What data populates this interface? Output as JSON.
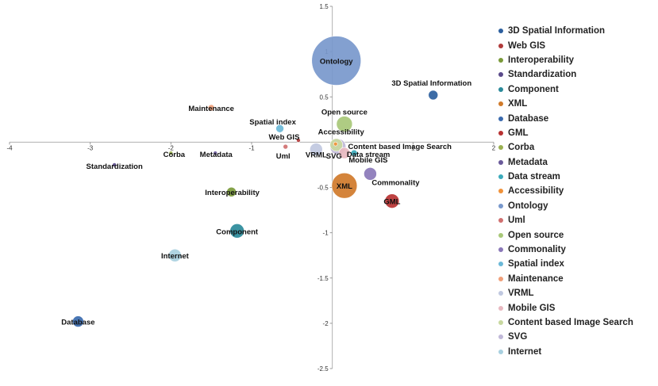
{
  "chart_data": {
    "type": "scatter",
    "title": "",
    "xlabel": "",
    "ylabel": "",
    "xlim": [
      -4,
      2
    ],
    "ylim": [
      -2.5,
      1.5
    ],
    "x_ticks": [
      "-4",
      "-3",
      "-2",
      "-1",
      "0",
      "1",
      "2"
    ],
    "y_ticks": [
      "1.5",
      "1",
      "0.5",
      "-0.5",
      "-1",
      "-1.5",
      "-2",
      "-2.5"
    ],
    "legend_position": "right",
    "grid": false,
    "series": [
      {
        "name": "3D Spatial Information",
        "x": 1.25,
        "y": 0.52,
        "size": 6,
        "color": "#2c5f9e"
      },
      {
        "name": "Web GIS",
        "x": -0.42,
        "y": 0.02,
        "size": 1,
        "color": "#b03a3a"
      },
      {
        "name": "Interoperability",
        "x": -1.25,
        "y": -0.55,
        "size": 6,
        "color": "#7a9a3a"
      },
      {
        "name": "Standardization",
        "x": -2.7,
        "y": -0.25,
        "size": 2,
        "color": "#5a4a8a"
      },
      {
        "name": "Component",
        "x": -1.18,
        "y": -0.98,
        "size": 9,
        "color": "#2a8a9a"
      },
      {
        "name": "XML",
        "x": 0.15,
        "y": -0.48,
        "size": 16,
        "color": "#d07a2a"
      },
      {
        "name": "Database",
        "x": -3.15,
        "y": -1.98,
        "size": 7,
        "color": "#3a6aae"
      },
      {
        "name": "GML",
        "x": 0.74,
        "y": -0.65,
        "size": 9,
        "color": "#b83232"
      },
      {
        "name": "Corba",
        "x": -2.0,
        "y": -0.12,
        "size": 2,
        "color": "#9ab050"
      },
      {
        "name": "Metadata",
        "x": -1.45,
        "y": -0.12,
        "size": 2,
        "color": "#6a5a9a"
      },
      {
        "name": "Data stream",
        "x": 0.27,
        "y": -0.12,
        "size": 4,
        "color": "#3aaabb"
      },
      {
        "name": "Accessibility",
        "x": 0.04,
        "y": -0.02,
        "size": 2,
        "color": "#f0923a"
      },
      {
        "name": "Ontology",
        "x": 0.05,
        "y": 0.9,
        "size": 31,
        "color": "#7898cc"
      },
      {
        "name": "Uml",
        "x": -0.58,
        "y": -0.05,
        "size": 3,
        "color": "#d07070"
      },
      {
        "name": "Open source",
        "x": 0.15,
        "y": 0.2,
        "size": 10,
        "color": "#a8c878"
      },
      {
        "name": "Commonality",
        "x": 0.47,
        "y": -0.35,
        "size": 8,
        "color": "#8a78b8"
      },
      {
        "name": "Spatial index",
        "x": -0.65,
        "y": 0.15,
        "size": 5,
        "color": "#6ab8d8"
      },
      {
        "name": "Maintenance",
        "x": -1.5,
        "y": 0.38,
        "size": 4,
        "color": "#f0a07a"
      },
      {
        "name": "VRML",
        "x": -0.2,
        "y": -0.08,
        "size": 8,
        "color": "#c0c8e0"
      },
      {
        "name": "Mobile GIS",
        "x": 0.15,
        "y": -0.12,
        "size": 7,
        "color": "#e8b8c0"
      },
      {
        "name": "Content based Image Search",
        "x": 0.05,
        "y": -0.03,
        "size": 8,
        "color": "#c8d8a0"
      },
      {
        "name": "SVG",
        "x": 0.07,
        "y": -0.05,
        "size": 10,
        "color": "#c0b8d8"
      },
      {
        "name": "Internet",
        "x": -1.95,
        "y": -1.25,
        "size": 8,
        "color": "#a8d0e0"
      }
    ],
    "point_labels": [
      {
        "series": "3D Spatial Information",
        "text": "3D Spatial Information"
      },
      {
        "series": "Web GIS",
        "text": "Web GIS"
      },
      {
        "series": "Interoperability",
        "text": "Interoperability"
      },
      {
        "series": "Standardization",
        "text": "Standardization"
      },
      {
        "series": "Component",
        "text": "Component"
      },
      {
        "series": "XML",
        "text": "XML"
      },
      {
        "series": "Database",
        "text": "Database"
      },
      {
        "series": "GML",
        "text": "GML"
      },
      {
        "series": "Corba",
        "text": "Corba"
      },
      {
        "series": "Metadata",
        "text": "Metadata"
      },
      {
        "series": "Data stream",
        "text": "Data stream"
      },
      {
        "series": "Accessibility",
        "text": "Accessibility"
      },
      {
        "series": "Ontology",
        "text": "Ontology"
      },
      {
        "series": "Uml",
        "text": "Uml"
      },
      {
        "series": "Open source",
        "text": "Open source"
      },
      {
        "series": "Commonality",
        "text": "Commonality"
      },
      {
        "series": "Spatial index",
        "text": "Spatial index"
      },
      {
        "series": "Maintenance",
        "text": "Maintenance"
      },
      {
        "series": "VRML",
        "text": "VRML"
      },
      {
        "series": "Mobile GIS",
        "text": "Mobile GIS"
      },
      {
        "series": "Content based Image Search",
        "text": "Content based Image Search"
      },
      {
        "series": "SVG",
        "text": "SVG"
      },
      {
        "series": "Internet",
        "text": "Internet"
      }
    ]
  }
}
